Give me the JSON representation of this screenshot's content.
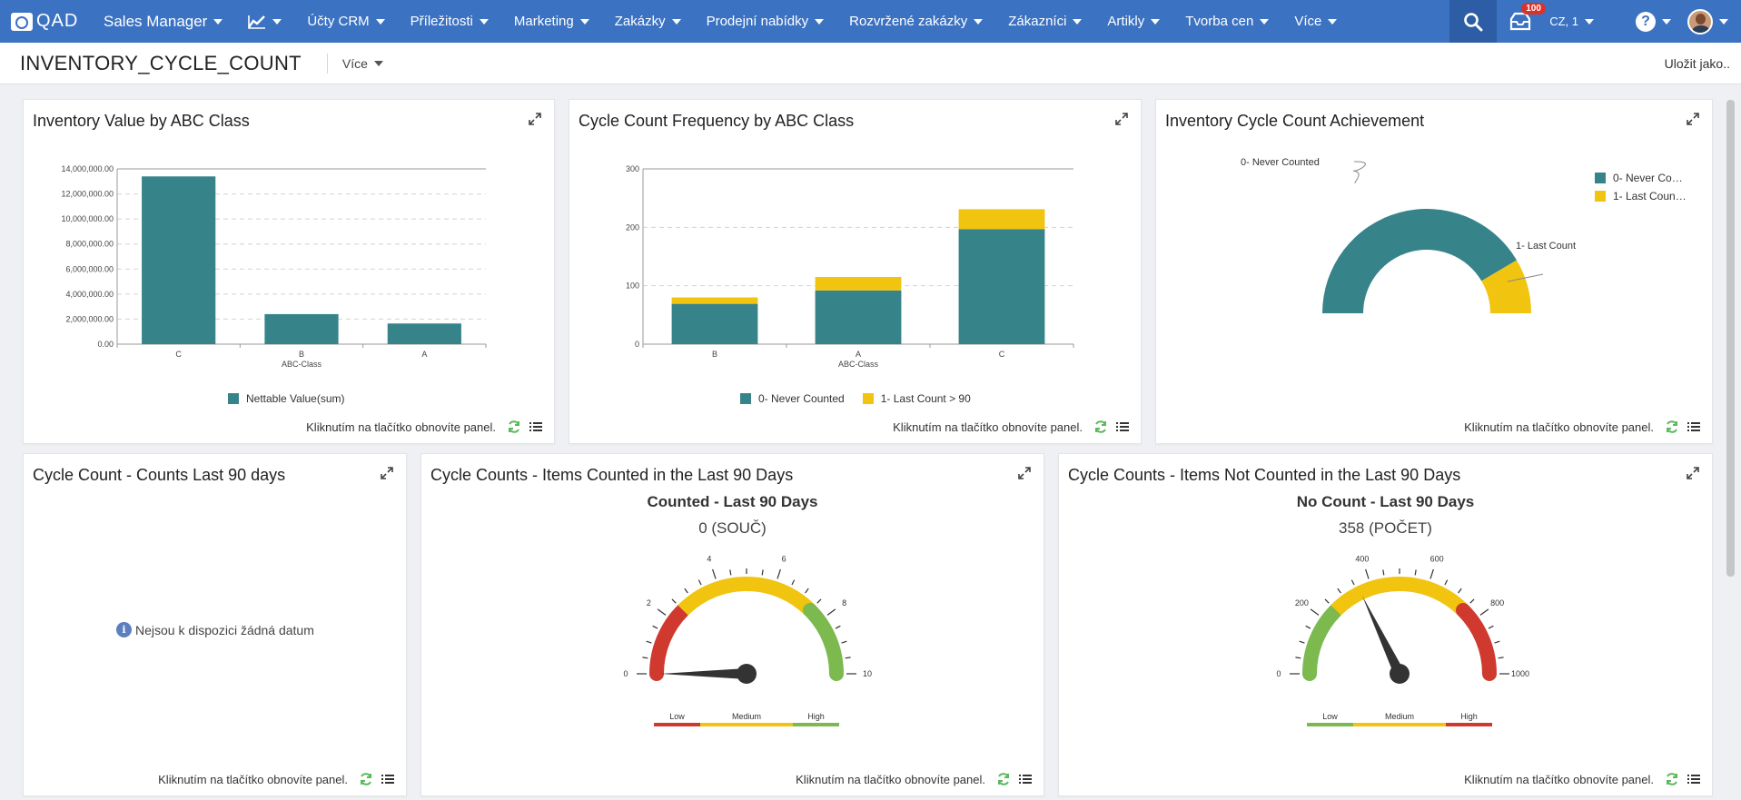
{
  "nav": {
    "logo": "QAD",
    "role": "Sales Manager",
    "items": [
      "Účty CRM",
      "Příležitosti",
      "Marketing",
      "Zakázky",
      "Prodejní nabídky",
      "Rozvržené zakázky",
      "Zákazníci",
      "Artikly",
      "Tvorba cen",
      "Více"
    ],
    "notification_count": "100",
    "locale": "CZ, 1",
    "colors": {
      "bar": "#3b72c2",
      "search_bg": "#2d5ea5"
    }
  },
  "header": {
    "title": "INVENTORY_CYCLE_COUNT",
    "more_label": "Více",
    "save_as": "Uložit jako.."
  },
  "footer_text": "Kliknutím na tlačítko obnovíte panel.",
  "panels": {
    "inv_value": {
      "title": "Inventory Value by ABC Class",
      "legend": "Nettable Value(sum)"
    },
    "cc_freq": {
      "title": "Cycle Count Frequency by ABC Class",
      "legend": [
        "0- Never Counted",
        "1- Last Count > 90"
      ]
    },
    "achievement": {
      "title": "Inventory Cycle Count Achievement",
      "legend": [
        "0- Never Co…",
        "1- Last Coun…"
      ],
      "slice_labels": [
        "0- Never Counted",
        "1- Last Count"
      ]
    },
    "counts90": {
      "title": "Cycle Count - Counts Last 90 days",
      "no_data": "Nejsou k dispozici žádná datum"
    },
    "counted": {
      "title": "Cycle Counts - Items Counted in the Last 90 Days",
      "gauge_title": "Counted - Last 90 Days",
      "gauge_value": "0 (SOUČ)"
    },
    "not_counted": {
      "title": "Cycle Counts - Items Not Counted in the Last 90 Days",
      "gauge_title": "No Count - Last 90 Days",
      "gauge_value": "358 (POČET)"
    }
  },
  "chart_data": [
    {
      "type": "bar",
      "title": "Inventory Value by ABC Class",
      "categories": [
        "C",
        "B",
        "A"
      ],
      "series": [
        {
          "name": "Nettable Value(sum)",
          "values": [
            13400000,
            2400000,
            1650000
          ]
        }
      ],
      "xlabel": "ABC-Class",
      "ylabel": "",
      "ylim": [
        0,
        14000000
      ],
      "yticks": [
        "0.00",
        "2,000,000.00",
        "4,000,000.00",
        "6,000,000.00",
        "8,000,000.00",
        "10,000,000.00",
        "12,000,000.00",
        "14,000,000.00"
      ],
      "grid": true,
      "legend": "bottom",
      "color": "#36838a"
    },
    {
      "type": "bar",
      "stacked": true,
      "title": "Cycle Count Frequency by ABC Class",
      "categories": [
        "B",
        "A",
        "C"
      ],
      "series": [
        {
          "name": "0- Never Counted",
          "values": [
            69,
            92,
            197
          ],
          "color": "#36838a"
        },
        {
          "name": "1- Last Count > 90",
          "values": [
            11,
            23,
            34
          ],
          "color": "#f1c40f"
        }
      ],
      "xlabel": "ABC-Class",
      "ylabel": "",
      "ylim": [
        0,
        300
      ],
      "yticks": [
        "0",
        "100",
        "200",
        "300"
      ],
      "grid": true,
      "legend": "bottom"
    },
    {
      "type": "pie",
      "variant": "semi-donut",
      "title": "Inventory Cycle Count Achievement",
      "slices": [
        {
          "label": "0- Never Counted",
          "value": 83,
          "color": "#36838a"
        },
        {
          "label": "1- Last Count > 90",
          "value": 17,
          "color": "#f1c40f"
        }
      ],
      "legend": "top-right"
    },
    {
      "type": "gauge",
      "title": "Counted - Last 90 Days",
      "value": 0,
      "range": [
        0,
        10
      ],
      "ticks": [
        "0",
        "2",
        "4",
        "6",
        "8",
        "10"
      ],
      "bands": [
        {
          "label": "Low",
          "from": 0,
          "to": 2.5,
          "color": "#d0392e"
        },
        {
          "label": "Medium",
          "from": 2.5,
          "to": 7.5,
          "color": "#f1c40f"
        },
        {
          "label": "High",
          "from": 7.5,
          "to": 10,
          "color": "#7cb94e"
        }
      ]
    },
    {
      "type": "gauge",
      "title": "No Count - Last 90 Days",
      "value": 358,
      "range": [
        0,
        1000
      ],
      "ticks": [
        "0",
        "200",
        "400",
        "600",
        "800",
        "1000"
      ],
      "bands": [
        {
          "label": "Low",
          "from": 0,
          "to": 250,
          "color": "#7cb94e"
        },
        {
          "label": "Medium",
          "from": 250,
          "to": 750,
          "color": "#f1c40f"
        },
        {
          "label": "High",
          "from": 750,
          "to": 1000,
          "color": "#d0392e"
        }
      ]
    }
  ]
}
